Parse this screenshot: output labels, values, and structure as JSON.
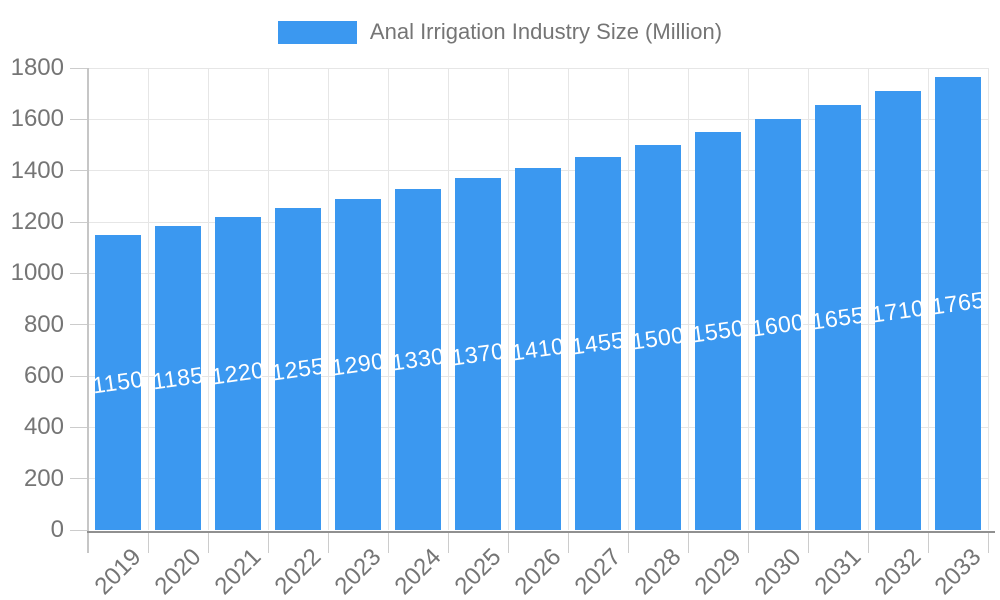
{
  "chart_data": {
    "type": "bar",
    "title": "Anal Irrigation Industry Size (Million)",
    "categories": [
      "2019",
      "2020",
      "2021",
      "2022",
      "2023",
      "2024",
      "2025",
      "2026",
      "2027",
      "2028",
      "2029",
      "2030",
      "2031",
      "2032",
      "2033"
    ],
    "values": [
      1150,
      1185,
      1220,
      1255,
      1290,
      1330,
      1370,
      1410,
      1455,
      1500,
      1550,
      1600,
      1655,
      1710,
      1765
    ],
    "xlabel": "",
    "ylabel": "",
    "ylim": [
      0,
      1800
    ],
    "ytick_step": 200,
    "yticks": [
      0,
      200,
      400,
      600,
      800,
      1000,
      1200,
      1400,
      1600,
      1800
    ],
    "grid": true,
    "legend_position": "top-center",
    "value_labels": "inside-middle",
    "x_tick_rotation": -45
  },
  "legend": {
    "label": "Anal Irrigation Industry Size (Million)"
  },
  "colors": {
    "bar": "#3B98F0",
    "axis_text": "#757575",
    "gridline": "#e6e6e6",
    "tick_line": "#cccccc",
    "y_axis_line": "#c6c6c6",
    "x_axis_line": "#909090",
    "value_label": "#ffffff",
    "background": "#ffffff"
  }
}
